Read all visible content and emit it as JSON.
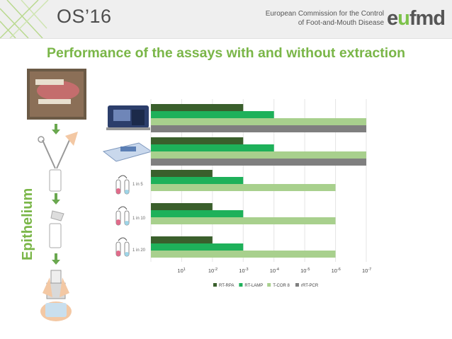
{
  "header": {
    "event": "OS’16",
    "org_line1": "European Commission for the Control",
    "org_line2": "of Foot-and-Mouth Disease",
    "logo": {
      "prefix": "e",
      "accent": "u",
      "suffix": "fmd"
    }
  },
  "slide_title": "Performance of the assays with and without extraction",
  "sample_label": "Epithelium",
  "colors": {
    "accent_green": "#7ab648",
    "RT-RPA": "#3a5f2c",
    "RT-LAMP": "#1eb15a",
    "T-COR 8": "#a8d08d",
    "rRT-PCR": "#7f7f7f"
  },
  "icons": [
    "mouth-lesion-photo",
    "forceps-and-tube-icon",
    "sample-tube-icon",
    "grinding-tube-icon",
    "hands-vortex-icon",
    "automated-extractor-icon",
    "extraction-kit-icon",
    "dilution-tube-icon"
  ],
  "dilution_labels": [
    "1 in 5",
    "1 in 10",
    "1 in 20"
  ],
  "chart_data": {
    "type": "bar",
    "orientation": "horizontal",
    "categories": [
      "Automated extraction",
      "Manual extraction kit",
      "1 in 5",
      "1 in 10",
      "1 in 20"
    ],
    "series": [
      {
        "name": "RT-RPA",
        "values": [
          3,
          3,
          2,
          2,
          2
        ]
      },
      {
        "name": "RT-LAMP",
        "values": [
          4,
          4,
          3,
          3,
          3
        ]
      },
      {
        "name": "T-COR 8",
        "values": [
          7,
          7,
          6,
          6,
          6
        ]
      },
      {
        "name": "rRT-PCR",
        "values": [
          7,
          7,
          null,
          null,
          null
        ]
      }
    ],
    "x_ticks": [
      "1",
      "2",
      "3",
      "4",
      "5",
      "6",
      "7"
    ],
    "x_tick_base": "10",
    "x_tick_sign": "-",
    "x_tick_first": "10¹",
    "xlim": [
      0,
      7
    ],
    "legend": [
      "RT-RPA",
      "RT-LAMP",
      "T-COR 8",
      "rRT-PCR"
    ],
    "legend_position": "bottom",
    "grid": true
  }
}
